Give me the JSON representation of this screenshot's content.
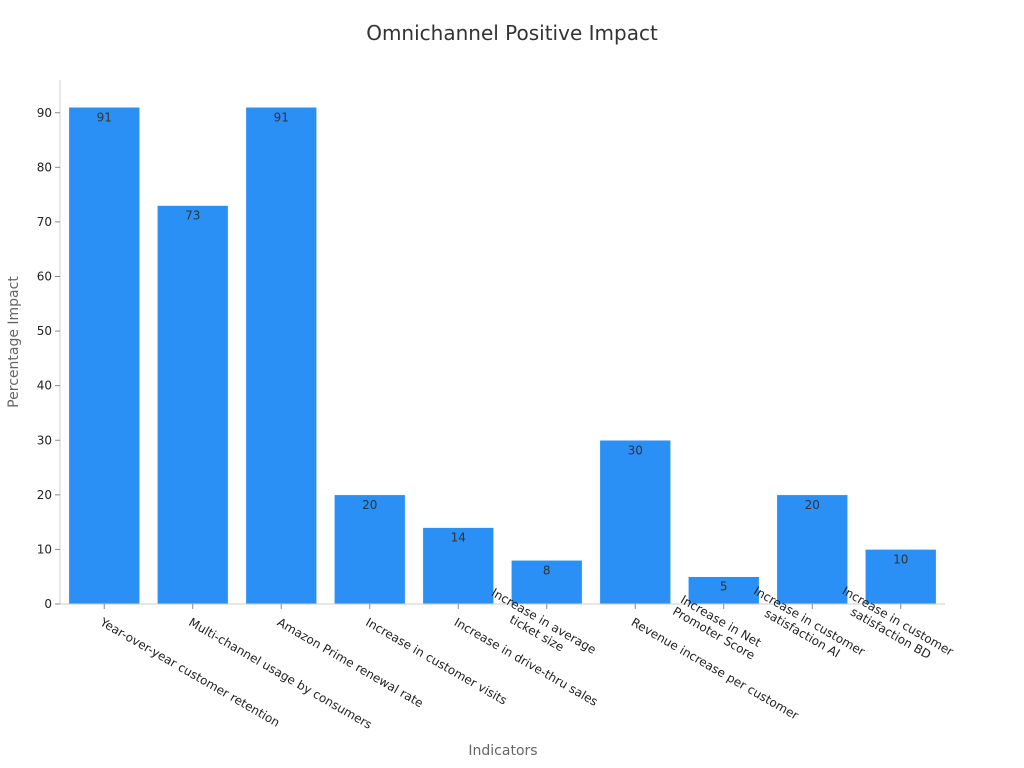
{
  "chart_data": {
    "type": "bar",
    "title": "Omnichannel Positive Impact",
    "xlabel": "Indicators",
    "ylabel": "Percentage Impact",
    "categories": [
      [
        "Year-over-year customer retention"
      ],
      [
        "Multi-channel usage by consumers"
      ],
      [
        "Amazon Prime renewal rate"
      ],
      [
        "Increase in customer visits"
      ],
      [
        "Increase in drive-thru sales"
      ],
      [
        "Increase in average",
        "ticket size"
      ],
      [
        "Revenue increase per customer"
      ],
      [
        "Increase in Net",
        "Promoter Score"
      ],
      [
        "Increase in customer",
        "satisfaction AI"
      ],
      [
        "Increase in customer",
        "satisfaction BD"
      ]
    ],
    "values": [
      91,
      73,
      91,
      20,
      14,
      8,
      30,
      5,
      20,
      10
    ],
    "ylim": [
      0,
      96
    ],
    "yticks": [
      0,
      10,
      20,
      30,
      40,
      50,
      60,
      70,
      80,
      90
    ],
    "grid": false,
    "bar_color": "#2b90f5",
    "axis_color": "#cccccc"
  }
}
